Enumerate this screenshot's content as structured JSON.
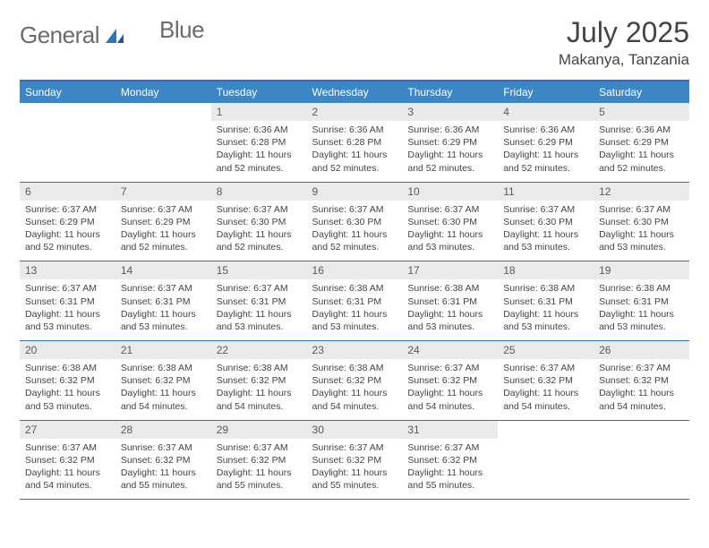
{
  "brand": {
    "word1": "General",
    "word2": "Blue"
  },
  "title": "July 2025",
  "location": "Makanya, Tanzania",
  "colors": {
    "header_bg": "#3d86c6",
    "border": "#2d74b8",
    "daynum_bg": "#eaeaea",
    "text": "#444444",
    "logo_gray": "#6b6b6b",
    "logo_blue": "#2d74b8"
  },
  "weekdays": [
    "Sunday",
    "Monday",
    "Tuesday",
    "Wednesday",
    "Thursday",
    "Friday",
    "Saturday"
  ],
  "weeks": [
    [
      {
        "n": "",
        "sr": "",
        "ss": "",
        "dl": ""
      },
      {
        "n": "",
        "sr": "",
        "ss": "",
        "dl": ""
      },
      {
        "n": "1",
        "sr": "Sunrise: 6:36 AM",
        "ss": "Sunset: 6:28 PM",
        "dl": "Daylight: 11 hours and 52 minutes."
      },
      {
        "n": "2",
        "sr": "Sunrise: 6:36 AM",
        "ss": "Sunset: 6:28 PM",
        "dl": "Daylight: 11 hours and 52 minutes."
      },
      {
        "n": "3",
        "sr": "Sunrise: 6:36 AM",
        "ss": "Sunset: 6:29 PM",
        "dl": "Daylight: 11 hours and 52 minutes."
      },
      {
        "n": "4",
        "sr": "Sunrise: 6:36 AM",
        "ss": "Sunset: 6:29 PM",
        "dl": "Daylight: 11 hours and 52 minutes."
      },
      {
        "n": "5",
        "sr": "Sunrise: 6:36 AM",
        "ss": "Sunset: 6:29 PM",
        "dl": "Daylight: 11 hours and 52 minutes."
      }
    ],
    [
      {
        "n": "6",
        "sr": "Sunrise: 6:37 AM",
        "ss": "Sunset: 6:29 PM",
        "dl": "Daylight: 11 hours and 52 minutes."
      },
      {
        "n": "7",
        "sr": "Sunrise: 6:37 AM",
        "ss": "Sunset: 6:29 PM",
        "dl": "Daylight: 11 hours and 52 minutes."
      },
      {
        "n": "8",
        "sr": "Sunrise: 6:37 AM",
        "ss": "Sunset: 6:30 PM",
        "dl": "Daylight: 11 hours and 52 minutes."
      },
      {
        "n": "9",
        "sr": "Sunrise: 6:37 AM",
        "ss": "Sunset: 6:30 PM",
        "dl": "Daylight: 11 hours and 52 minutes."
      },
      {
        "n": "10",
        "sr": "Sunrise: 6:37 AM",
        "ss": "Sunset: 6:30 PM",
        "dl": "Daylight: 11 hours and 53 minutes."
      },
      {
        "n": "11",
        "sr": "Sunrise: 6:37 AM",
        "ss": "Sunset: 6:30 PM",
        "dl": "Daylight: 11 hours and 53 minutes."
      },
      {
        "n": "12",
        "sr": "Sunrise: 6:37 AM",
        "ss": "Sunset: 6:30 PM",
        "dl": "Daylight: 11 hours and 53 minutes."
      }
    ],
    [
      {
        "n": "13",
        "sr": "Sunrise: 6:37 AM",
        "ss": "Sunset: 6:31 PM",
        "dl": "Daylight: 11 hours and 53 minutes."
      },
      {
        "n": "14",
        "sr": "Sunrise: 6:37 AM",
        "ss": "Sunset: 6:31 PM",
        "dl": "Daylight: 11 hours and 53 minutes."
      },
      {
        "n": "15",
        "sr": "Sunrise: 6:37 AM",
        "ss": "Sunset: 6:31 PM",
        "dl": "Daylight: 11 hours and 53 minutes."
      },
      {
        "n": "16",
        "sr": "Sunrise: 6:38 AM",
        "ss": "Sunset: 6:31 PM",
        "dl": "Daylight: 11 hours and 53 minutes."
      },
      {
        "n": "17",
        "sr": "Sunrise: 6:38 AM",
        "ss": "Sunset: 6:31 PM",
        "dl": "Daylight: 11 hours and 53 minutes."
      },
      {
        "n": "18",
        "sr": "Sunrise: 6:38 AM",
        "ss": "Sunset: 6:31 PM",
        "dl": "Daylight: 11 hours and 53 minutes."
      },
      {
        "n": "19",
        "sr": "Sunrise: 6:38 AM",
        "ss": "Sunset: 6:31 PM",
        "dl": "Daylight: 11 hours and 53 minutes."
      }
    ],
    [
      {
        "n": "20",
        "sr": "Sunrise: 6:38 AM",
        "ss": "Sunset: 6:32 PM",
        "dl": "Daylight: 11 hours and 53 minutes."
      },
      {
        "n": "21",
        "sr": "Sunrise: 6:38 AM",
        "ss": "Sunset: 6:32 PM",
        "dl": "Daylight: 11 hours and 54 minutes."
      },
      {
        "n": "22",
        "sr": "Sunrise: 6:38 AM",
        "ss": "Sunset: 6:32 PM",
        "dl": "Daylight: 11 hours and 54 minutes."
      },
      {
        "n": "23",
        "sr": "Sunrise: 6:38 AM",
        "ss": "Sunset: 6:32 PM",
        "dl": "Daylight: 11 hours and 54 minutes."
      },
      {
        "n": "24",
        "sr": "Sunrise: 6:37 AM",
        "ss": "Sunset: 6:32 PM",
        "dl": "Daylight: 11 hours and 54 minutes."
      },
      {
        "n": "25",
        "sr": "Sunrise: 6:37 AM",
        "ss": "Sunset: 6:32 PM",
        "dl": "Daylight: 11 hours and 54 minutes."
      },
      {
        "n": "26",
        "sr": "Sunrise: 6:37 AM",
        "ss": "Sunset: 6:32 PM",
        "dl": "Daylight: 11 hours and 54 minutes."
      }
    ],
    [
      {
        "n": "27",
        "sr": "Sunrise: 6:37 AM",
        "ss": "Sunset: 6:32 PM",
        "dl": "Daylight: 11 hours and 54 minutes."
      },
      {
        "n": "28",
        "sr": "Sunrise: 6:37 AM",
        "ss": "Sunset: 6:32 PM",
        "dl": "Daylight: 11 hours and 55 minutes."
      },
      {
        "n": "29",
        "sr": "Sunrise: 6:37 AM",
        "ss": "Sunset: 6:32 PM",
        "dl": "Daylight: 11 hours and 55 minutes."
      },
      {
        "n": "30",
        "sr": "Sunrise: 6:37 AM",
        "ss": "Sunset: 6:32 PM",
        "dl": "Daylight: 11 hours and 55 minutes."
      },
      {
        "n": "31",
        "sr": "Sunrise: 6:37 AM",
        "ss": "Sunset: 6:32 PM",
        "dl": "Daylight: 11 hours and 55 minutes."
      },
      {
        "n": "",
        "sr": "",
        "ss": "",
        "dl": ""
      },
      {
        "n": "",
        "sr": "",
        "ss": "",
        "dl": ""
      }
    ]
  ]
}
